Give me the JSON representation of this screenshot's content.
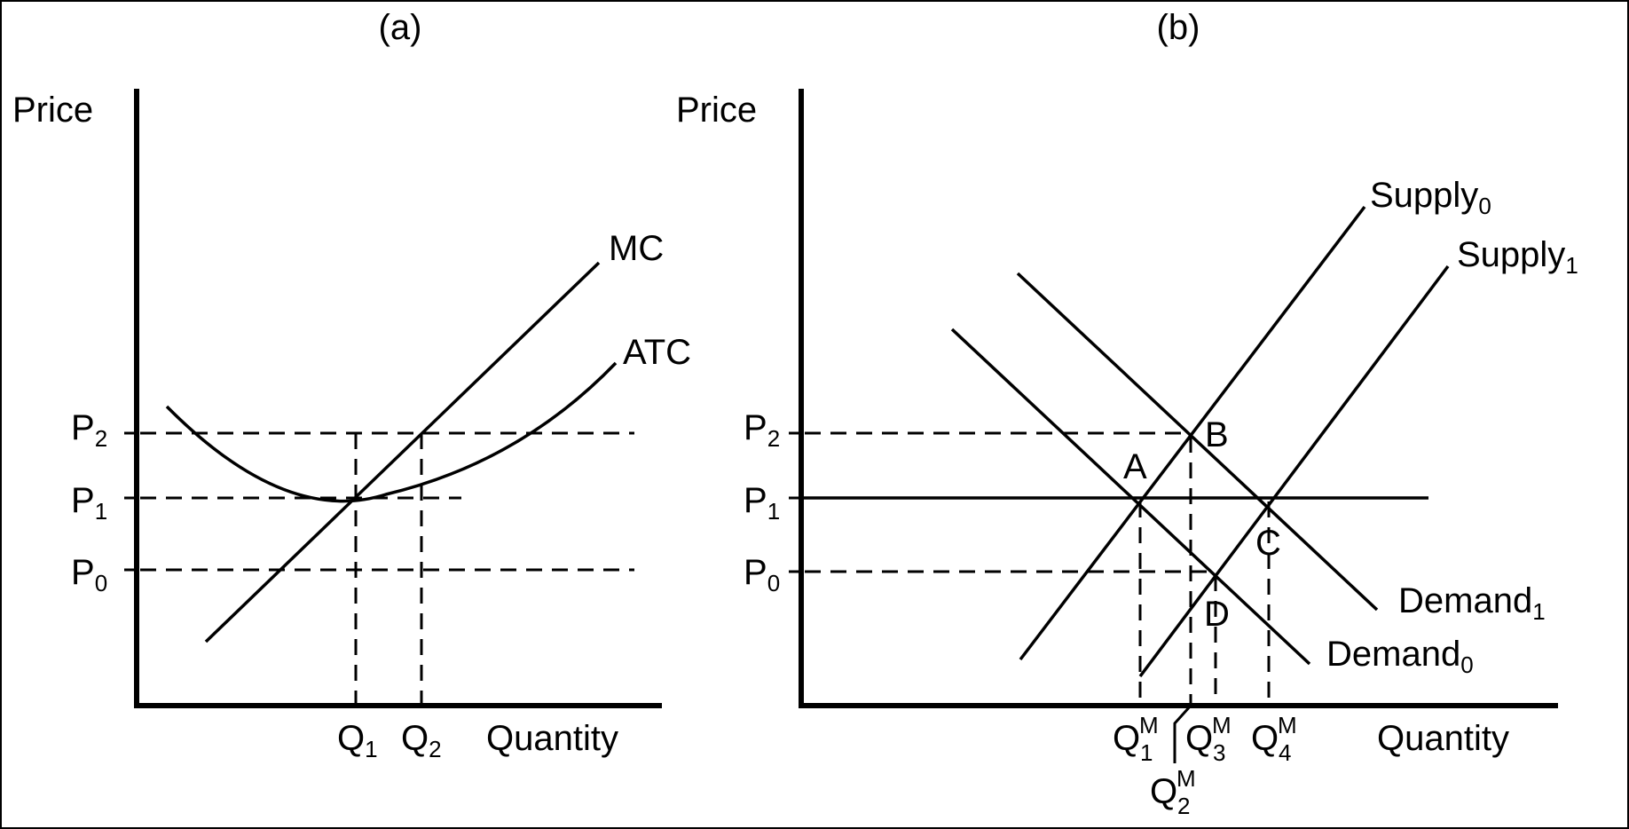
{
  "panel_a": {
    "title": "(a)",
    "y_axis_label": "Price",
    "x_axis_label": "Quantity",
    "curves": {
      "mc": "MC",
      "atc": "ATC"
    },
    "price_levels": [
      {
        "base": "P",
        "sub": "2"
      },
      {
        "base": "P",
        "sub": "1"
      },
      {
        "base": "P",
        "sub": "0"
      }
    ],
    "quantity_levels": [
      {
        "base": "Q",
        "sub": "1"
      },
      {
        "base": "Q",
        "sub": "2"
      }
    ]
  },
  "panel_b": {
    "title": "(b)",
    "y_axis_label": "Price",
    "x_axis_label": "Quantity",
    "supply0": {
      "base": "Supply",
      "sub": "0"
    },
    "supply1": {
      "base": "Supply",
      "sub": "1"
    },
    "demand0": {
      "base": "Demand",
      "sub": "0"
    },
    "demand1": {
      "base": "Demand",
      "sub": "1"
    },
    "points": {
      "a": "A",
      "b": "B",
      "c": "C",
      "d": "D"
    },
    "price_levels": [
      {
        "base": "P",
        "sub": "2"
      },
      {
        "base": "P",
        "sub": "1"
      },
      {
        "base": "P",
        "sub": "0"
      }
    ],
    "quantity_levels": [
      {
        "base": "Q",
        "sup": "M",
        "sub": "1"
      },
      {
        "base": "Q",
        "sup": "M",
        "sub": "2"
      },
      {
        "base": "Q",
        "sup": "M",
        "sub": "3"
      },
      {
        "base": "Q",
        "sup": "M",
        "sub": "4"
      }
    ]
  }
}
